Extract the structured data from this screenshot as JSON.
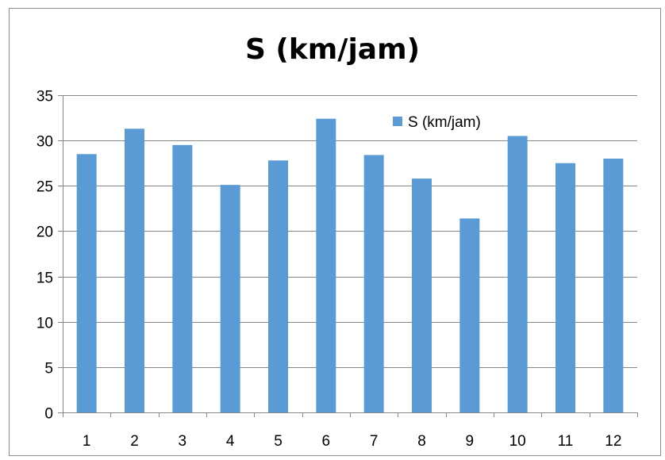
{
  "chart_data": {
    "type": "bar",
    "title": "S (km/jam)",
    "xlabel": "",
    "ylabel": "",
    "categories": [
      "1",
      "2",
      "3",
      "4",
      "5",
      "6",
      "7",
      "8",
      "9",
      "10",
      "11",
      "12"
    ],
    "series": [
      {
        "name": "S (km/jam)",
        "values": [
          28.5,
          31.3,
          29.5,
          25.1,
          27.8,
          32.4,
          28.4,
          25.8,
          21.4,
          30.5,
          27.5,
          28.0
        ]
      }
    ],
    "ylim": [
      0,
      35
    ],
    "yticks": [
      "0",
      "5",
      "10",
      "15",
      "20",
      "25",
      "30",
      "35"
    ],
    "grid": true,
    "legend_position": "top-right",
    "colors": {
      "bar": "#5b9bd5",
      "grid": "#868686",
      "axis": "#868686"
    }
  }
}
